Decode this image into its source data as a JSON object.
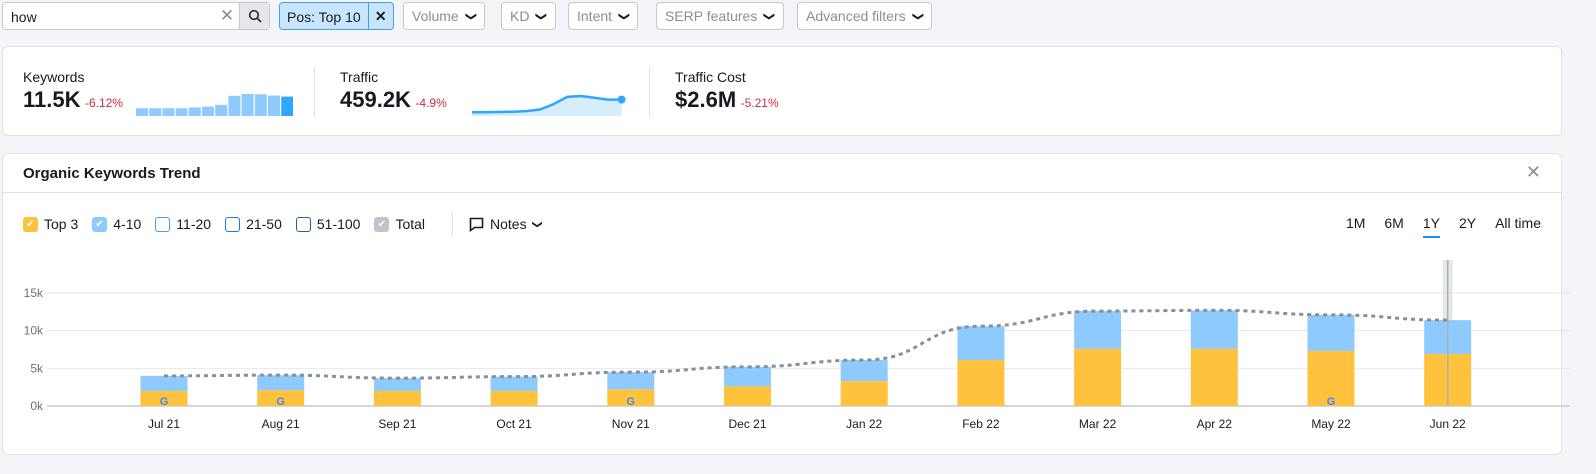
{
  "filters": {
    "search_value": "how",
    "position_chip": "Pos: Top 10",
    "volume": "Volume",
    "kd": "KD",
    "intent": "Intent",
    "serp": "SERP features",
    "advanced": "Advanced filters"
  },
  "summary": {
    "keywords": {
      "label": "Keywords",
      "value": "11.5K",
      "delta": "-6.12%"
    },
    "traffic": {
      "label": "Traffic",
      "value": "459.2K",
      "delta": "-4.9%"
    },
    "cost": {
      "label": "Traffic Cost",
      "value": "$2.6M",
      "delta": "-5.21%"
    }
  },
  "trend": {
    "title": "Organic Keywords Trend",
    "legend": [
      {
        "label": "Top 3",
        "checked": true,
        "color": "#ffc23d"
      },
      {
        "label": "4-10",
        "checked": true,
        "color": "#8fcaff"
      },
      {
        "label": "11-20",
        "checked": false,
        "color": "#3ea0ef"
      },
      {
        "label": "21-50",
        "checked": false,
        "color": "#1a7fd6"
      },
      {
        "label": "51-100",
        "checked": false,
        "color": "#1565b5"
      },
      {
        "label": "Total",
        "checked": true,
        "color": "#c2c4cc"
      }
    ],
    "notes": "Notes",
    "ranges": [
      "1M",
      "6M",
      "1Y",
      "2Y",
      "All time"
    ],
    "active_range": "1Y"
  },
  "chart_data": {
    "type": "bar",
    "stacked": true,
    "categories": [
      "Jul 21",
      "Aug 21",
      "Sep 21",
      "Oct 21",
      "Nov 21",
      "Dec 21",
      "Jan 22",
      "Feb 22",
      "Mar 22",
      "Apr 22",
      "May 22",
      "Jun 22"
    ],
    "series": [
      {
        "name": "Top 3",
        "color": "#ffc23d",
        "values": [
          2000,
          2100,
          2000,
          2000,
          2200,
          2600,
          3300,
          6100,
          7600,
          7600,
          7300,
          6900
        ]
      },
      {
        "name": "4-10",
        "color": "#8fcaff",
        "values": [
          2000,
          2000,
          1700,
          1900,
          2300,
          2600,
          2800,
          4500,
          5000,
          5100,
          4800,
          4500
        ]
      },
      {
        "name": "Total",
        "type": "line",
        "style": "dotted",
        "color": "#8a8e9b",
        "values": [
          4000,
          4100,
          3700,
          3900,
          4500,
          5200,
          6100,
          10600,
          12600,
          12700,
          12100,
          11400
        ]
      }
    ],
    "yticks": [
      "0k",
      "5k",
      "10k",
      "15k"
    ],
    "ylim": [
      0,
      15000
    ],
    "grid": true,
    "google_update_markers": [
      "Jul 21",
      "Aug 21",
      "Nov 21",
      "May 22"
    ],
    "highlighted": "Jun 22",
    "sparkline_keywords": [
      3,
      3,
      3,
      3,
      3.3,
      3.6,
      4.3,
      7.8,
      8.5,
      8.4,
      7.9,
      7.5
    ],
    "sparkline_traffic": [
      1,
      1,
      1.1,
      1.3,
      1.6,
      2.5,
      5.5,
      9.5,
      10,
      9,
      8,
      8
    ]
  }
}
